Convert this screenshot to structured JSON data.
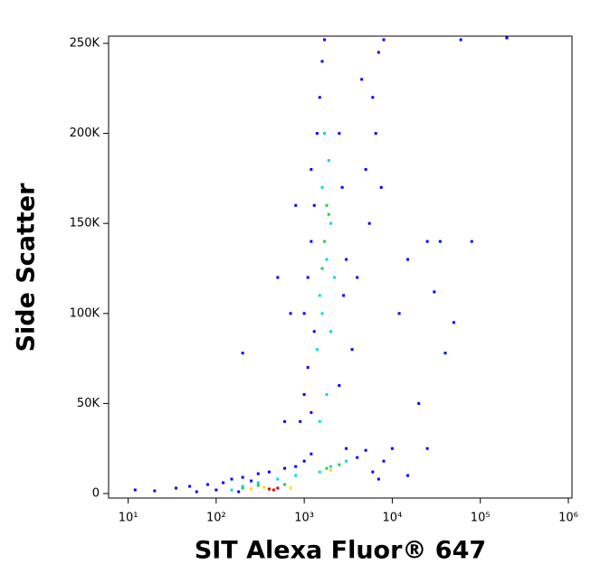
{
  "chart_data": {
    "type": "scatter",
    "x_label": "SIT Alexa Fluor® 647",
    "y_label": "Side Scatter",
    "xscale": "log",
    "xlim": [
      6,
      1100000
    ],
    "ylim": [
      -2500,
      254000
    ],
    "xticks": [
      {
        "value": 10,
        "label": "10¹"
      },
      {
        "value": 100,
        "label": "10²"
      },
      {
        "value": 1000,
        "label": "10³"
      },
      {
        "value": 10000,
        "label": "10⁴"
      },
      {
        "value": 100000,
        "label": "10⁵"
      },
      {
        "value": 1000000,
        "label": "10⁶"
      }
    ],
    "yticks": [
      0,
      {
        "value": 50000,
        "label": "50K"
      },
      {
        "value": 100000,
        "label": "100K"
      },
      {
        "value": 150000,
        "label": "150K"
      },
      {
        "value": 200000,
        "label": "200K"
      },
      {
        "value": 250000,
        "label": "250K"
      }
    ],
    "series": [
      {
        "color": "#0000ff",
        "x": [
          12,
          20,
          35,
          50,
          60,
          80,
          100,
          120,
          150,
          180,
          200,
          250,
          300,
          400,
          600,
          800,
          1000,
          1200,
          3000,
          4000,
          5000,
          6000,
          7000,
          8000,
          15000,
          25000,
          900,
          1000,
          1100,
          1200,
          1300,
          1000,
          1100,
          1200,
          1300,
          1200,
          1400,
          1500,
          1600,
          1700,
          2500,
          2800,
          3000,
          2700,
          2500,
          3500,
          4000,
          5000,
          6000,
          7000,
          8000,
          6500,
          5500,
          7500,
          4500,
          700,
          800,
          600,
          200,
          500,
          15000,
          25000,
          35000,
          80000,
          30000,
          50000,
          40000,
          20000,
          60000,
          200000,
          10000,
          12000
        ],
        "y": [
          2000,
          1500,
          3000,
          4000,
          1000,
          5000,
          2000,
          6000,
          8000,
          1000,
          9000,
          7000,
          11000,
          12000,
          14000,
          15000,
          18000,
          22000,
          25000,
          20000,
          24000,
          12000,
          8000,
          18000,
          10000,
          25000,
          40000,
          55000,
          70000,
          45000,
          90000,
          100000,
          120000,
          140000,
          160000,
          180000,
          200000,
          220000,
          240000,
          252000,
          60000,
          110000,
          130000,
          170000,
          200000,
          80000,
          120000,
          180000,
          220000,
          245000,
          252000,
          200000,
          150000,
          170000,
          230000,
          100000,
          160000,
          40000,
          78000,
          120000,
          130000,
          140000,
          140000,
          140000,
          112000,
          95000,
          78000,
          50000,
          252000,
          253000,
          25000,
          100000
        ]
      },
      {
        "color": "#00d8e8",
        "x": [
          150,
          200,
          300,
          500,
          800,
          1500,
          2000,
          3000,
          1500,
          1800,
          1400,
          1600,
          1500,
          1800,
          2000,
          1600,
          1900,
          1700,
          2200,
          2000
        ],
        "y": [
          2000,
          4000,
          6000,
          8000,
          10000,
          12000,
          15000,
          18000,
          40000,
          55000,
          80000,
          100000,
          110000,
          130000,
          150000,
          170000,
          185000,
          200000,
          120000,
          90000
        ]
      },
      {
        "color": "#22cc44",
        "x": [
          200,
          300,
          600,
          1800,
          2500,
          1700,
          1900,
          1800,
          1600
        ],
        "y": [
          3000,
          4500,
          5000,
          14000,
          16000,
          140000,
          155000,
          160000,
          125000
        ]
      },
      {
        "color": "#f0e000",
        "x": [
          250,
          350,
          700,
          2000
        ],
        "y": [
          2500,
          3500,
          3000,
          13000
        ]
      },
      {
        "color": "#e00000",
        "x": [
          400,
          500,
          450
        ],
        "y": [
          2500,
          3000,
          2000
        ]
      }
    ]
  }
}
